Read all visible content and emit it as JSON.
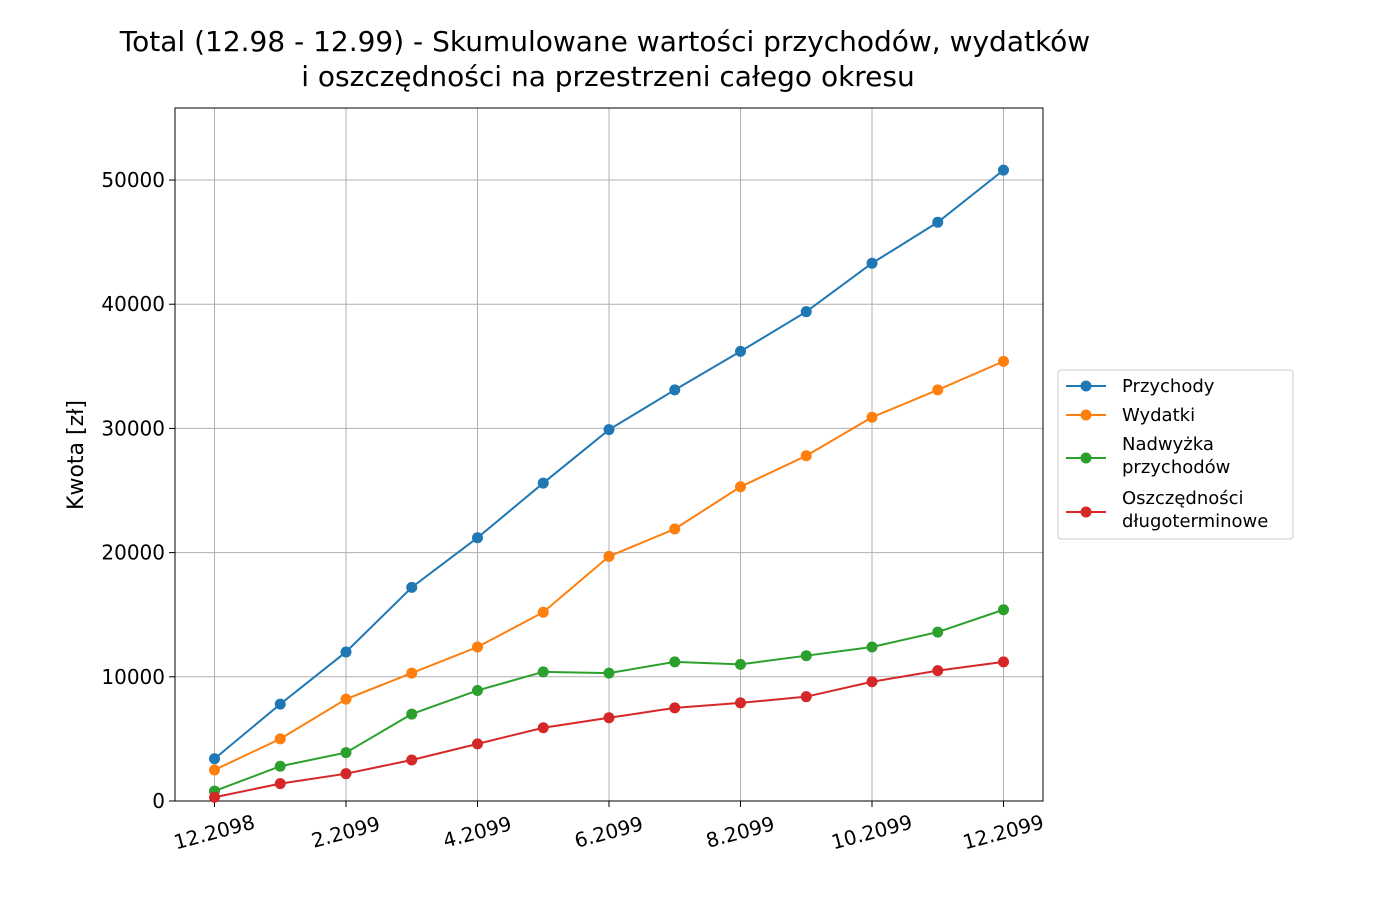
{
  "chart_data": {
    "type": "line",
    "title": [
      "Total (12.98 - 12.99) - Skumulowane wartości przychodów, wydatków",
      "i oszczędności na przestrzeni całego okresu"
    ],
    "xlabel": "",
    "ylabel": "Kwota [zł]",
    "x": [
      "12.2098",
      "1.2099",
      "2.2099",
      "3.2099",
      "4.2099",
      "5.2099",
      "6.2099",
      "7.2099",
      "8.2099",
      "9.2099",
      "10.2099",
      "11.2099",
      "12.2099"
    ],
    "xtick_labels": [
      "12.2098",
      "2.2099",
      "4.2099",
      "6.2099",
      "8.2099",
      "10.2099",
      "12.2099"
    ],
    "ylim": [
      0,
      55800
    ],
    "yticks": [
      0,
      10000,
      20000,
      30000,
      40000,
      50000
    ],
    "grid": true,
    "legend_position": "center-right, outside plot",
    "series": [
      {
        "name": "Przychody",
        "color": "#1f77b4",
        "values": [
          3400,
          7800,
          12000,
          17200,
          21200,
          25600,
          29900,
          33100,
          36200,
          39400,
          43300,
          46600,
          50800
        ]
      },
      {
        "name": "Wydatki",
        "color": "#ff7f0e",
        "values": [
          2500,
          5000,
          8200,
          10300,
          12400,
          15200,
          19700,
          21900,
          25300,
          27800,
          30900,
          33100,
          35400
        ]
      },
      {
        "name": "Nadwyżka przychodów",
        "color": "#2ca02c",
        "values": [
          800,
          2800,
          3900,
          7000,
          8900,
          10400,
          10300,
          11200,
          11000,
          11700,
          12400,
          13600,
          15400
        ]
      },
      {
        "name": "Oszczędności długoterminowe",
        "color": "#d62728",
        "values": [
          300,
          1400,
          2200,
          3300,
          4600,
          5900,
          6700,
          7500,
          7900,
          8400,
          9600,
          10500,
          11200
        ]
      }
    ]
  }
}
